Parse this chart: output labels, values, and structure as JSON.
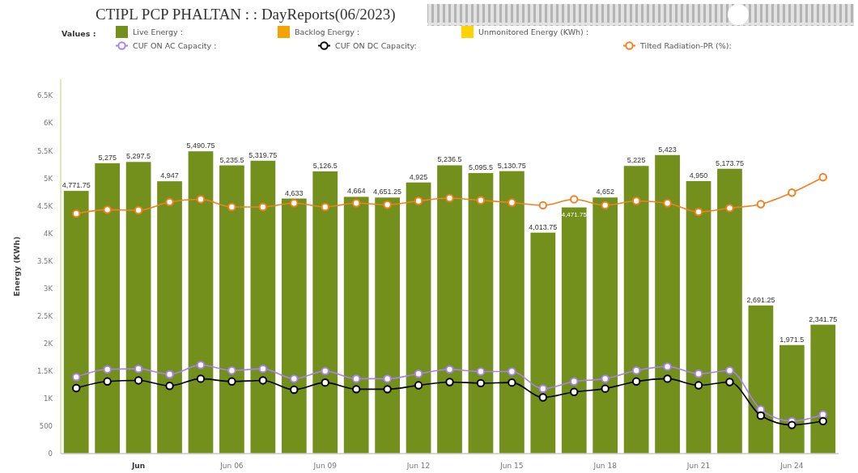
{
  "chart_data": {
    "type": "bar",
    "title": "CTIPL PCP PHALTAN : : DayReports(06/2023)",
    "ylabel": "Energy (KWh)",
    "legend_title": "Values :",
    "legend": "top",
    "stacked": true,
    "categories": [
      null,
      null,
      "Jun",
      null,
      null,
      "Jun 06",
      null,
      null,
      "Jun 09",
      null,
      null,
      "Jun 12",
      null,
      null,
      "Jun 15",
      null,
      null,
      "Jun 18",
      null,
      null,
      "Jun 21",
      null,
      null,
      "Jun 24",
      null
    ],
    "ylim": [
      0,
      6800
    ],
    "yticks": [
      0,
      500,
      {
        "value": 1000,
        "label": "1K"
      },
      {
        "value": 1500,
        "label": "1.5K"
      },
      {
        "value": 2000,
        "label": "2K"
      },
      {
        "value": 2500,
        "label": "2.5K"
      },
      {
        "value": 3000,
        "label": "3K"
      },
      {
        "value": 3500,
        "label": "3.5K"
      },
      {
        "value": 4000,
        "label": "4K"
      },
      {
        "value": 4500,
        "label": "4.5K"
      },
      {
        "value": 5000,
        "label": "5K"
      },
      {
        "value": 5500,
        "label": "5.5K"
      },
      {
        "value": 6000,
        "label": "6K"
      },
      {
        "value": 6500,
        "label": "6.5K"
      }
    ],
    "series": [
      {
        "name": "Live Energy :",
        "color": "#74901c",
        "values": [
          4771.75,
          5275,
          5297.5,
          4947,
          5490.75,
          5235.5,
          5319.75,
          4633,
          5126.5,
          4664,
          4651.25,
          4925,
          5236.5,
          5095.5,
          5130.75,
          4013.75,
          4471.75,
          4652,
          5225,
          5423,
          4950,
          5173.75,
          2691.25,
          1971.5,
          2341.75
        ],
        "value_labels": [
          "4,771.75",
          "5,275",
          "5,297.5",
          "4,947",
          "5,490.75",
          "5,235.5",
          "5,319.75",
          "4,633",
          "5,126.5",
          "4,664",
          "4,651.25",
          "4,925",
          "5,236.5",
          "5,095.5",
          "5,130.75",
          "4,013.75",
          "4,471.75",
          "4,652",
          "5,225",
          "5,423",
          "4,950",
          "5,173.75",
          "2,691.25",
          "1,971.5",
          "2,341.75"
        ]
      },
      {
        "name": "Backlog Energy :",
        "color": "#f5a300",
        "values": [
          null,
          null,
          null,
          null,
          null,
          null,
          null,
          null,
          null,
          null,
          null,
          null,
          null,
          null,
          null,
          null,
          null,
          null,
          null,
          null,
          null,
          null,
          null,
          null,
          null
        ]
      },
      {
        "name": "Unmonitored Energy (KWh) :",
        "color": "#ffd200",
        "values": [
          null,
          null,
          null,
          null,
          null,
          null,
          null,
          null,
          null,
          null,
          null,
          null,
          null,
          null,
          null,
          null,
          null,
          null,
          null,
          null,
          null,
          null,
          null,
          null,
          null
        ]
      },
      {
        "name": "CUF ON AC Capacity :",
        "type": "line",
        "color": "#a882ea",
        "marker": "circle",
        "values": [
          1390,
          1530,
          1540,
          1440,
          1610,
          1510,
          1540,
          1360,
          1500,
          1360,
          1360,
          1450,
          1530,
          1490,
          1490,
          1180,
          1310,
          1360,
          1510,
          1580,
          1450,
          1510,
          800,
          590,
          710
        ]
      },
      {
        "name": "CUF ON DC Capacity:",
        "type": "line",
        "color": "#000000",
        "marker": "circle",
        "values": [
          1190,
          1310,
          1330,
          1230,
          1360,
          1310,
          1330,
          1160,
          1290,
          1170,
          1170,
          1240,
          1300,
          1280,
          1290,
          1020,
          1120,
          1180,
          1310,
          1360,
          1240,
          1300,
          690,
          520,
          590
        ]
      },
      {
        "name": "Tilted Radiation-PR (%):",
        "type": "line",
        "color": "#f08020",
        "marker": "circle",
        "values": [
          4360,
          4430,
          4420,
          4570,
          4620,
          4480,
          4480,
          4550,
          4480,
          4550,
          4520,
          4590,
          4640,
          4600,
          4560,
          4510,
          4620,
          4510,
          4590,
          4550,
          4390,
          4460,
          4530,
          4740,
          5020
        ]
      }
    ]
  }
}
